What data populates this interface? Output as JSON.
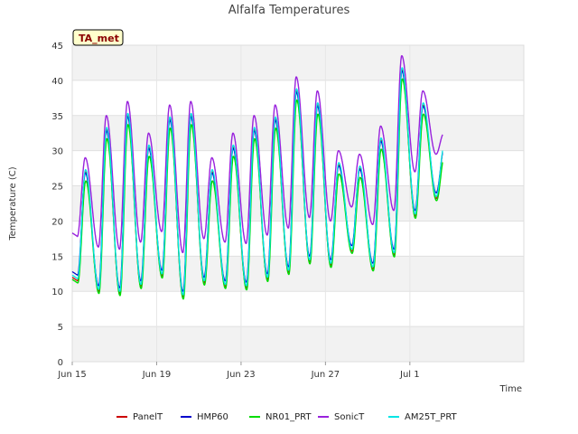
{
  "chart_data": {
    "type": "line",
    "title": "Alfalfa Temperatures",
    "xlabel": "Time",
    "ylabel": "Temperature (C)",
    "badge": "TA_met",
    "ylim": [
      0,
      45
    ],
    "xlim": [
      0,
      21.4
    ],
    "yticks": [
      0,
      5,
      10,
      15,
      20,
      25,
      30,
      35,
      40,
      45
    ],
    "xticks": [
      {
        "value": 0,
        "label": "Jun 15"
      },
      {
        "value": 4,
        "label": "Jun 19"
      },
      {
        "value": 8,
        "label": "Jun 23"
      },
      {
        "value": 12,
        "label": "Jun 27"
      },
      {
        "value": 16,
        "label": "Jul 1"
      }
    ],
    "grid": true,
    "legend_position": "bottom",
    "days": [
      {
        "min": 11.8,
        "max": 26.5
      },
      {
        "min": 10.3,
        "max": 32.5
      },
      {
        "min": 10.0,
        "max": 34.5
      },
      {
        "min": 11.0,
        "max": 30.0
      },
      {
        "min": 12.5,
        "max": 34.0
      },
      {
        "min": 9.5,
        "max": 34.5
      },
      {
        "min": 11.5,
        "max": 26.5
      },
      {
        "min": 11.0,
        "max": 30.0
      },
      {
        "min": 10.8,
        "max": 32.5
      },
      {
        "min": 12.0,
        "max": 34.0
      },
      {
        "min": 13.0,
        "max": 38.0
      },
      {
        "min": 14.5,
        "max": 36.0
      },
      {
        "min": 14.0,
        "max": 27.5
      },
      {
        "min": 16.0,
        "max": 27.0
      },
      {
        "min": 13.5,
        "max": 31.0
      },
      {
        "min": 15.5,
        "max": 41.0
      },
      {
        "min": 21.0,
        "max": 36.0
      },
      {
        "min": 23.5,
        "max": 30.0
      }
    ],
    "series": [
      {
        "name": "PanelT",
        "color": "#cc0000",
        "min_offset": -0.3,
        "max_offset": 0.5,
        "phase": 0.0,
        "width": 1.2
      },
      {
        "name": "HMP60",
        "color": "#0000cc",
        "min_offset": 0.5,
        "max_offset": 0.3,
        "phase": 0.0,
        "width": 1.2
      },
      {
        "name": "NR01_PRT",
        "color": "#00dd00",
        "min_offset": -0.6,
        "max_offset": -0.8,
        "phase": 0.015,
        "width": 1.4
      },
      {
        "name": "SonicT",
        "color": "#9922dd",
        "min_offset": 6.0,
        "max_offset": 2.5,
        "phase": -0.01,
        "width": 1.4
      },
      {
        "name": "AM25T_PRT",
        "color": "#00e5e5",
        "min_offset": 0.0,
        "max_offset": 0.8,
        "phase": 0.005,
        "width": 1.3
      }
    ]
  }
}
